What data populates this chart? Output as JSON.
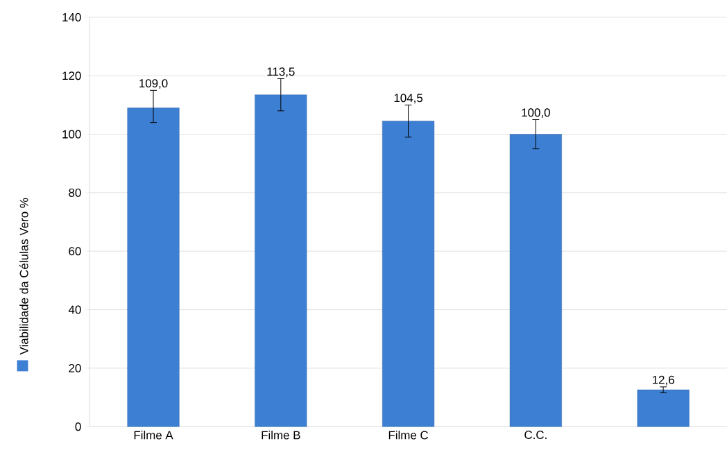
{
  "chart_data": {
    "type": "bar",
    "categories": [
      "Filme A",
      "Filme B",
      "Filme C",
      "C.C.",
      null
    ],
    "series": [
      {
        "name": "Viabilidade da Células Vero %",
        "color": "#3d7fd3",
        "values": [
          109.0,
          113.5,
          104.5,
          100.0,
          12.6
        ],
        "errors": [
          [
            104,
            115
          ],
          [
            108,
            119
          ],
          [
            99,
            110
          ],
          [
            95,
            105
          ],
          [
            11.6,
            13.6
          ]
        ],
        "value_labels": [
          "109,0",
          "113,5",
          "104,5",
          "100,0",
          "12,6"
        ]
      }
    ],
    "ylim": [
      0,
      140
    ],
    "yticks": [
      0,
      20,
      40,
      60,
      80,
      100,
      120,
      140
    ],
    "grid": "y",
    "legend": "left"
  }
}
